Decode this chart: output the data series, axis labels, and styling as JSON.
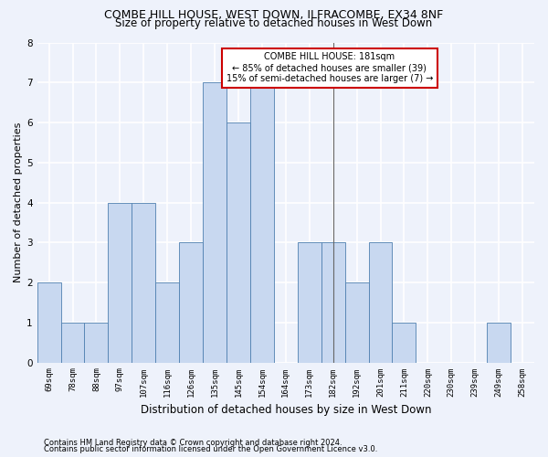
{
  "title1": "COMBE HILL HOUSE, WEST DOWN, ILFRACOMBE, EX34 8NF",
  "title2": "Size of property relative to detached houses in West Down",
  "xlabel": "Distribution of detached houses by size in West Down",
  "ylabel": "Number of detached properties",
  "categories": [
    "69sqm",
    "78sqm",
    "88sqm",
    "97sqm",
    "107sqm",
    "116sqm",
    "126sqm",
    "135sqm",
    "145sqm",
    "154sqm",
    "164sqm",
    "173sqm",
    "182sqm",
    "192sqm",
    "201sqm",
    "211sqm",
    "220sqm",
    "230sqm",
    "239sqm",
    "249sqm",
    "258sqm"
  ],
  "values": [
    2,
    1,
    1,
    4,
    4,
    2,
    3,
    7,
    6,
    7,
    0,
    3,
    3,
    2,
    3,
    1,
    0,
    0,
    0,
    1,
    0
  ],
  "bar_color": "#c8d8f0",
  "bar_edge_color": "#5080b0",
  "highlight_line_color": "#666666",
  "vline_index": 12,
  "annotation_text": "COMBE HILL HOUSE: 181sqm\n← 85% of detached houses are smaller (39)\n15% of semi-detached houses are larger (7) →",
  "annotation_box_color": "#ffffff",
  "annotation_edge_color": "#cc0000",
  "ylim": [
    0,
    8
  ],
  "yticks": [
    0,
    1,
    2,
    3,
    4,
    5,
    6,
    7,
    8
  ],
  "footnote1": "Contains HM Land Registry data © Crown copyright and database right 2024.",
  "footnote2": "Contains public sector information licensed under the Open Government Licence v3.0.",
  "bg_color": "#eef2fb",
  "grid_color": "#ffffff",
  "title_fontsize": 9,
  "subtitle_fontsize": 8.5,
  "ylabel_fontsize": 8,
  "xlabel_fontsize": 8.5,
  "tick_fontsize": 6.5,
  "annotation_fontsize": 7,
  "footnote_fontsize": 6
}
